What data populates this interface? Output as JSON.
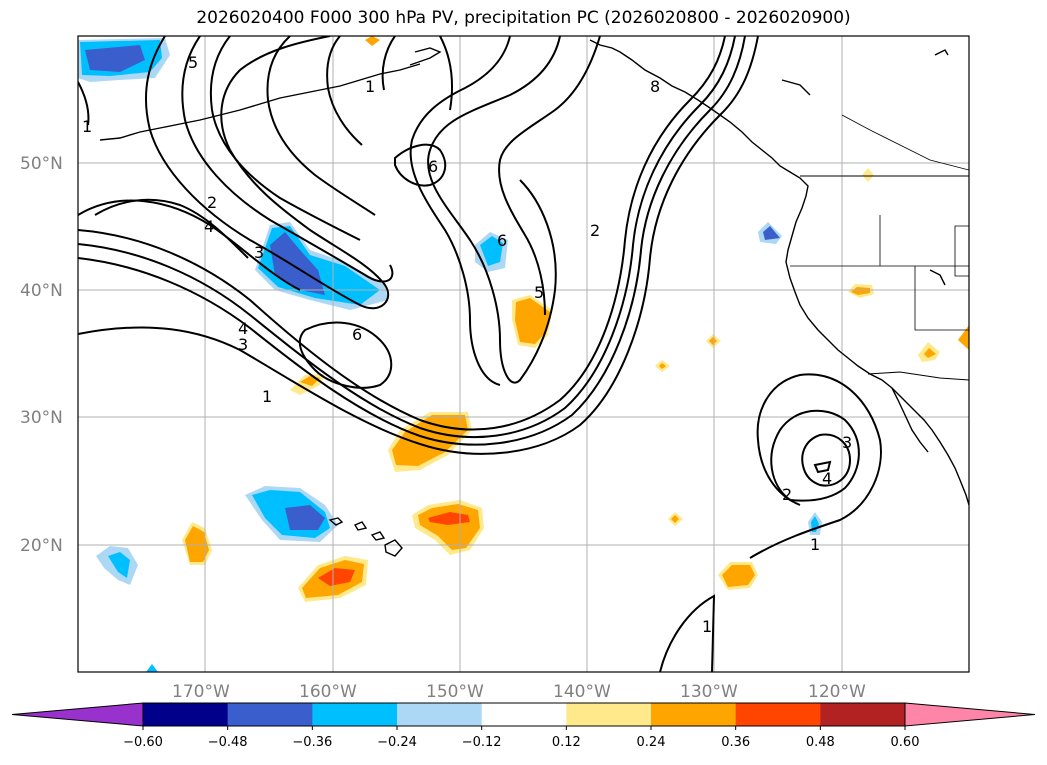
{
  "title": "2026020400 F000 300 hPa PV, precipitation PC (2026020800 - 2026020900)",
  "latitude_labels": [
    "50°N",
    "40°N",
    "30°N",
    "20°N"
  ],
  "longitude_labels": [
    "170°W",
    "160°W",
    "150°W",
    "140°W",
    "130°W",
    "120°W"
  ],
  "pv_contour_labels": [
    "5",
    "1",
    "6",
    "1",
    "2",
    "4",
    "3",
    "6",
    "2",
    "5",
    "6",
    "4",
    "3",
    "1",
    "3",
    "4",
    "2",
    "1",
    "1",
    "8"
  ],
  "colorbar": {
    "tick_labels": [
      "−0.60",
      "−0.48",
      "−0.36",
      "−0.24",
      "−0.12",
      "0.12",
      "0.24",
      "0.36",
      "0.48",
      "0.60"
    ],
    "colors": [
      "#9932cc",
      "#00008b",
      "#3a5fcd",
      "#00bfff",
      "#add8f5",
      "#ffffff",
      "#ffe98a",
      "#ffa500",
      "#ff4500",
      "#b22222",
      "#ff85a8"
    ]
  },
  "palette": {
    "strong_blue": "#3a5fcd",
    "blue": "#00bfff",
    "light_blue": "#add8f5",
    "yellow": "#ffe98a",
    "orange": "#ffa500",
    "red_orange": "#ff4500",
    "grid": "#b0b0b0"
  }
}
